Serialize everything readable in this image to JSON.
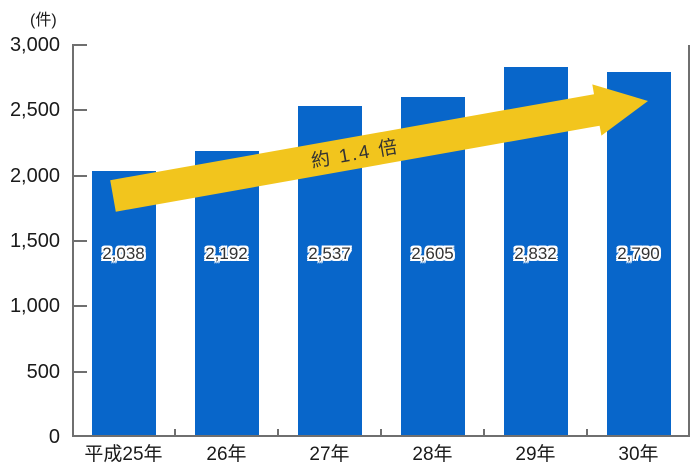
{
  "page": {
    "background": "#FFFFFF"
  },
  "chart_data": {
    "type": "bar",
    "unit_label": "(件)",
    "categories": [
      "平成25年",
      "26年",
      "27年",
      "28年",
      "29年",
      "30年"
    ],
    "values": [
      2038,
      2192,
      2537,
      2605,
      2832,
      2790
    ],
    "value_labels": [
      "2,038",
      "2,192",
      "2,537",
      "2,605",
      "2,832",
      "2,790"
    ],
    "ylim": [
      0,
      3000
    ],
    "ytick_values": [
      0,
      500,
      1000,
      1500,
      2000,
      2500,
      3000
    ],
    "ytick_labels": [
      "0",
      "500",
      "1,000",
      "1,500",
      "2,000",
      "2,500",
      "3,000"
    ],
    "grid": false,
    "legend": "none",
    "annotation": {
      "text": "約 1.4 倍"
    },
    "colors": {
      "bar": "#0866CA",
      "arrow": "#F2C51D",
      "axis": "#6F6F6F",
      "tick_text": "#1A1A1A",
      "value_label_text": "#333333"
    }
  }
}
